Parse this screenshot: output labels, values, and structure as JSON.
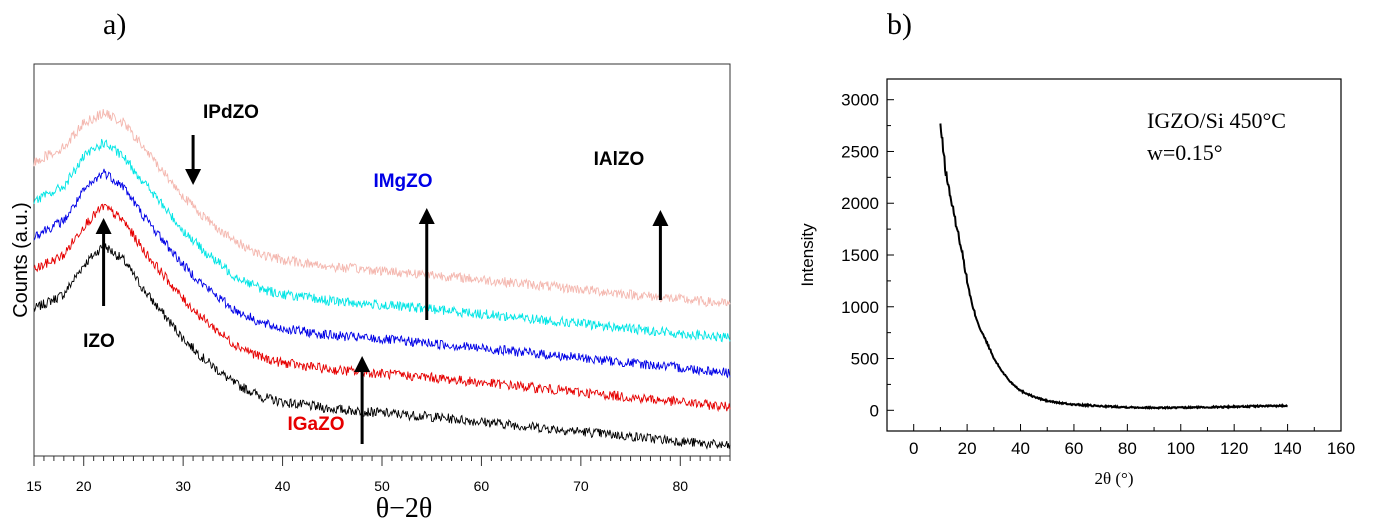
{
  "panel_a": {
    "label": "a)",
    "chart_data": {
      "type": "line",
      "xlabel": "θ−2θ",
      "ylabel": "Counts (a.u.)",
      "xlim": [
        15,
        85
      ],
      "xticks": [
        15,
        20,
        30,
        40,
        50,
        60,
        70,
        80
      ],
      "grid": false,
      "series": [
        {
          "name": "IZO",
          "color": "#000000",
          "x": [
            15,
            18,
            20,
            22,
            24,
            26,
            28,
            30,
            32,
            35,
            38,
            40,
            45,
            50,
            55,
            60,
            65,
            70,
            75,
            80,
            85
          ],
          "y": [
            150,
            165,
            195,
            215,
            200,
            170,
            145,
            120,
            100,
            75,
            60,
            55,
            48,
            44,
            40,
            35,
            30,
            25,
            20,
            15,
            10
          ]
        },
        {
          "name": "IGaZO",
          "color": "#e60000",
          "x": [
            15,
            18,
            20,
            22,
            24,
            26,
            28,
            30,
            32,
            35,
            38,
            40,
            45,
            50,
            55,
            60,
            65,
            70,
            75,
            80,
            85
          ],
          "y": [
            190,
            205,
            235,
            255,
            240,
            210,
            185,
            160,
            140,
            115,
            100,
            95,
            88,
            84,
            80,
            75,
            70,
            65,
            60,
            55,
            50
          ]
        },
        {
          "name": "IMgZO",
          "color": "#0000e6",
          "x": [
            15,
            18,
            20,
            22,
            24,
            26,
            28,
            30,
            32,
            35,
            38,
            40,
            45,
            50,
            55,
            60,
            65,
            70,
            75,
            80,
            85
          ],
          "y": [
            225,
            240,
            270,
            290,
            275,
            245,
            220,
            195,
            175,
            150,
            135,
            130,
            123,
            119,
            115,
            110,
            105,
            100,
            95,
            90,
            85
          ]
        },
        {
          "name": "IAlZO",
          "color": "#00e5e5",
          "x": [
            15,
            18,
            20,
            22,
            24,
            26,
            28,
            30,
            32,
            35,
            38,
            40,
            45,
            50,
            55,
            60,
            65,
            70,
            75,
            80,
            85
          ],
          "y": [
            260,
            275,
            305,
            320,
            305,
            280,
            255,
            230,
            210,
            185,
            170,
            165,
            158,
            154,
            150,
            145,
            140,
            135,
            130,
            125,
            120
          ]
        },
        {
          "name": "IPdZO",
          "color": "#f4b8b0",
          "x": [
            15,
            18,
            20,
            22,
            24,
            26,
            28,
            30,
            32,
            35,
            38,
            40,
            45,
            50,
            55,
            60,
            65,
            70,
            75,
            80,
            85
          ],
          "y": [
            300,
            315,
            340,
            350,
            340,
            315,
            290,
            265,
            245,
            220,
            205,
            200,
            193,
            189,
            185,
            180,
            175,
            170,
            165,
            160,
            155
          ]
        }
      ],
      "annotations": [
        {
          "text": "IZO",
          "color": "#000000",
          "arrow_x": 22,
          "direction": "up"
        },
        {
          "text": "IGaZO",
          "color": "#e60000",
          "arrow_x": 48,
          "direction": "up"
        },
        {
          "text": "IMgZO",
          "color": "#0000e6",
          "arrow_x": 54.5,
          "direction": "up"
        },
        {
          "text": "IAlZO",
          "color": "#000000",
          "arrow_x": 78,
          "direction": "up"
        },
        {
          "text": "IPdZO",
          "color": "#000000",
          "arrow_x": 31,
          "direction": "down"
        }
      ]
    }
  },
  "panel_b": {
    "label": "b)",
    "chart_data": {
      "type": "line",
      "xlabel": "2θ (°)",
      "ylabel": "Intensity",
      "xlim": [
        -10,
        160
      ],
      "ylim": [
        -200,
        3200
      ],
      "xticks": [
        0,
        20,
        40,
        60,
        80,
        100,
        120,
        140,
        160
      ],
      "yticks": [
        0,
        500,
        1000,
        1500,
        2000,
        2500,
        3000
      ],
      "grid": false,
      "annotation_lines": [
        "IGZO/Si 450°C",
        "w=0.15°"
      ],
      "series": [
        {
          "color": "#000000",
          "x": [
            10,
            12,
            15,
            18,
            20,
            22,
            25,
            28,
            30,
            33,
            36,
            40,
            45,
            50,
            55,
            60,
            70,
            80,
            90,
            100,
            110,
            120,
            130,
            140
          ],
          "y": [
            2750,
            2300,
            1900,
            1550,
            1250,
            1000,
            780,
            620,
            500,
            380,
            280,
            190,
            130,
            90,
            70,
            55,
            40,
            30,
            25,
            25,
            30,
            35,
            40,
            45
          ]
        }
      ]
    }
  }
}
